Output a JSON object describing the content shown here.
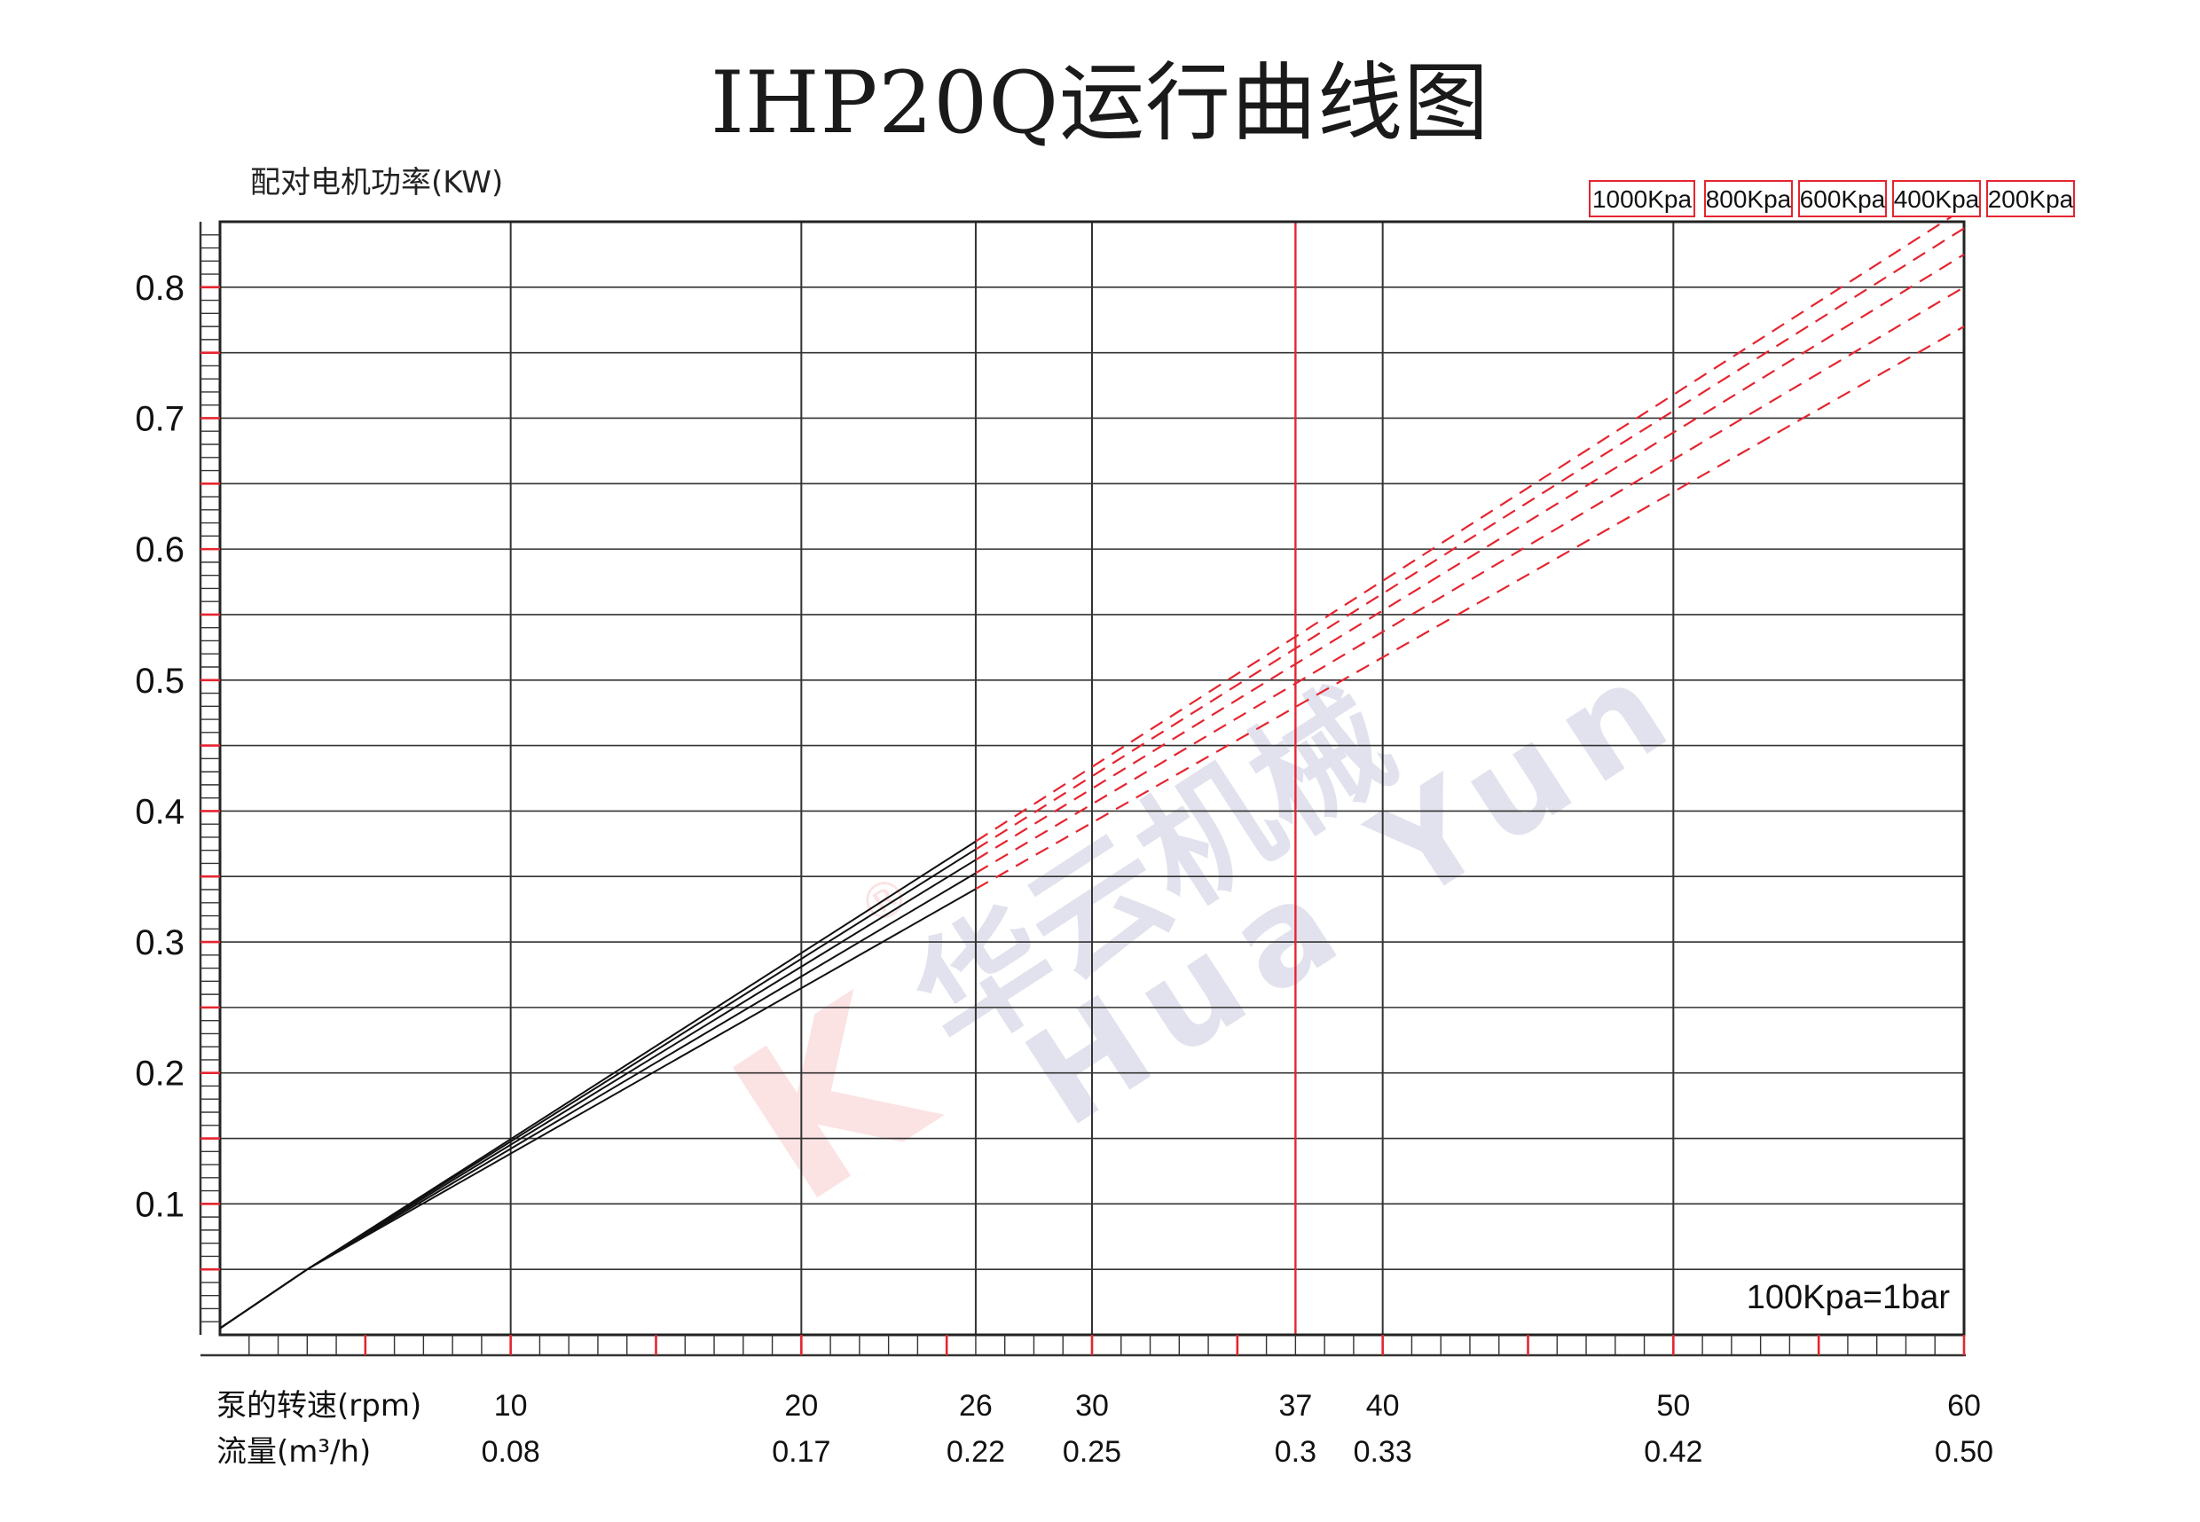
{
  "title": "IHP20Q运行曲线图",
  "chart_data": {
    "type": "line",
    "ylabel": "配对电机功率(KW)",
    "row_label_speed": "泵的转速(rpm)",
    "row_label_flow": "流量(m³/h)",
    "xlim": [
      0,
      60
    ],
    "ylim": [
      0,
      0.85
    ],
    "y_ticks": [
      {
        "v": 0.1,
        "label": "0.1"
      },
      {
        "v": 0.2,
        "label": "0.2"
      },
      {
        "v": 0.3,
        "label": "0.3"
      },
      {
        "v": 0.4,
        "label": "0.4"
      },
      {
        "v": 0.5,
        "label": "0.5"
      },
      {
        "v": 0.6,
        "label": "0.6"
      },
      {
        "v": 0.7,
        "label": "0.7"
      },
      {
        "v": 0.8,
        "label": "0.8"
      }
    ],
    "x_ticks": [
      {
        "rpm": 10,
        "rpm_label": "10",
        "flow_label": "0.08"
      },
      {
        "rpm": 20,
        "rpm_label": "20",
        "flow_label": "0.17"
      },
      {
        "rpm": 26,
        "rpm_label": "26",
        "flow_label": "0.22"
      },
      {
        "rpm": 30,
        "rpm_label": "30",
        "flow_label": "0.25"
      },
      {
        "rpm": 37,
        "rpm_label": "37",
        "flow_label": "0.3"
      },
      {
        "rpm": 40,
        "rpm_label": "40",
        "flow_label": "0.33"
      },
      {
        "rpm": 50,
        "rpm_label": "50",
        "flow_label": "0.42"
      },
      {
        "rpm": 60,
        "rpm_label": "60",
        "flow_label": "0.50"
      }
    ],
    "max_speed_rpm": 37,
    "solid_end_rpm": 26,
    "series": [
      {
        "name": "1000Kpa",
        "x": [
          0,
          3,
          60
        ],
        "y": [
          0.005,
          0.05,
          0.86
        ]
      },
      {
        "name": "800Kpa",
        "x": [
          0,
          3,
          60
        ],
        "y": [
          0.005,
          0.05,
          0.845
        ]
      },
      {
        "name": "600Kpa",
        "x": [
          0,
          3,
          60
        ],
        "y": [
          0.005,
          0.05,
          0.825
        ]
      },
      {
        "name": "400Kpa",
        "x": [
          0,
          3,
          60
        ],
        "y": [
          0.005,
          0.05,
          0.8
        ]
      },
      {
        "name": "200Kpa",
        "x": [
          0,
          3,
          60
        ],
        "y": [
          0.005,
          0.05,
          0.77
        ]
      }
    ],
    "note": "100Kpa=1bar",
    "colors": {
      "axis": "#222222",
      "grid": "#333333",
      "accent": "#e52530",
      "extrapolated": "#e52530"
    },
    "watermark": {
      "text": "华云机械",
      "text_latin": "Hua Yun",
      "mark": "®"
    }
  }
}
